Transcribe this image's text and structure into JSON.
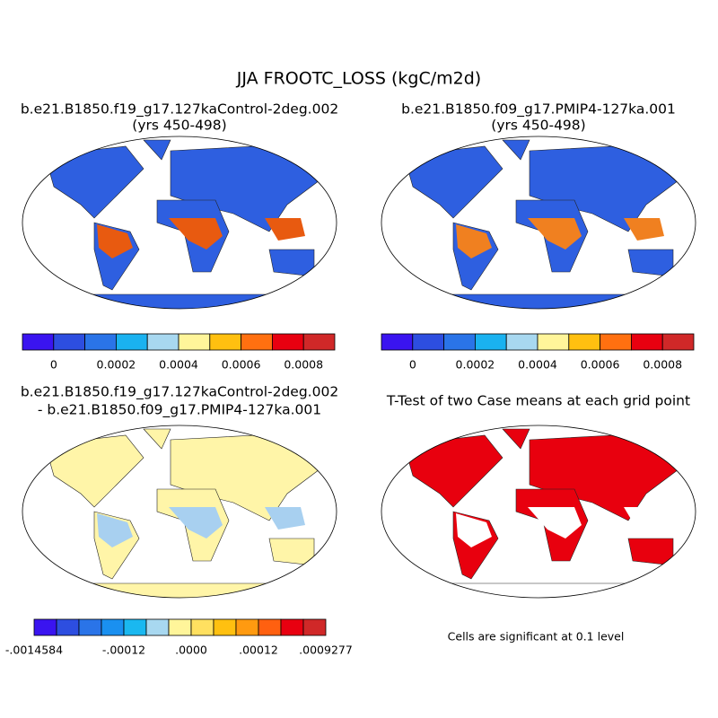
{
  "title": "JJA FROOTC_LOSS (kgC/m2d)",
  "panels": [
    {
      "title": [
        "b.e21.B1850.f19_g17.127kaControl-2deg.002",
        "(yrs 450-498)"
      ]
    },
    {
      "title": [
        "b.e21.B1850.f09_g17.PMIP4-127ka.001",
        "(yrs 450-498)"
      ]
    },
    {
      "title": [
        "b.e21.B1850.f19_g17.127kaControl-2deg.002",
        "- b.e21.B1850.f09_g17.PMIP4-127ka.001"
      ]
    },
    {
      "title": [
        "T-Test of two Case means at each grid point"
      ]
    }
  ],
  "colorbars": [
    {
      "colors": [
        "#3a14f0",
        "#2d4ee0",
        "#2a74e8",
        "#1ab2f0",
        "#a8d8f0",
        "#fff59a",
        "#ffc010",
        "#ff7010",
        "#e80010",
        "#d02828"
      ],
      "labels": [
        "0",
        "0.0002",
        "0.0004",
        "0.0006",
        "0.0008"
      ]
    },
    {
      "colors": [
        "#3a14f0",
        "#2d4ee0",
        "#2a74e8",
        "#1ab2f0",
        "#a8d8f0",
        "#fff59a",
        "#ffc010",
        "#ff7010",
        "#e80010",
        "#d02828"
      ],
      "labels": [
        "0",
        "0.0002",
        "0.0004",
        "0.0006",
        "0.0008"
      ]
    },
    {
      "colors": [
        "#3a14f0",
        "#2d4ee0",
        "#2a74e8",
        "#1a90f0",
        "#1ab8f0",
        "#a8d8f0",
        "#fff59a",
        "#ffe060",
        "#ffc010",
        "#ff9a10",
        "#ff6010",
        "#e80010",
        "#d02828"
      ],
      "labels": [
        "-.0014584",
        "-.00012",
        ".0000",
        ".00012",
        ".0009277"
      ]
    }
  ],
  "note": "Cells are significant at 0.1 level"
}
